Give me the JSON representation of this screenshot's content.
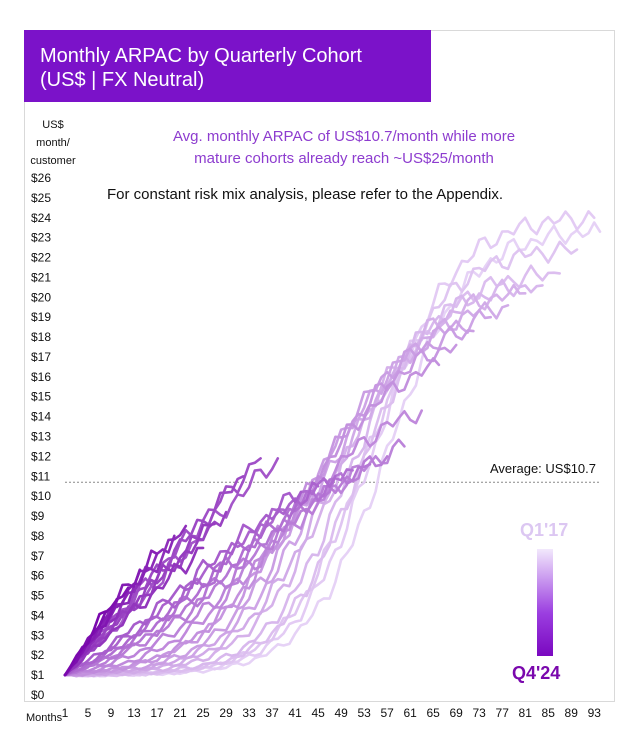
{
  "title": {
    "line1": "Monthly ARPAC by Quarterly Cohort",
    "line2": "(US$ | FX Neutral)"
  },
  "y_unit_label": [
    "US$",
    "month/",
    "customer"
  ],
  "subtitle": {
    "line1": "Avg. monthly ARPAC of US$10.7/month while more",
    "line2": "mature cohorts already reach ~US$25/month"
  },
  "note": "For constant risk mix analysis, please refer to the Appendix.",
  "legend": {
    "newest": "Q4'24",
    "oldest": "Q1'17"
  },
  "colors": {
    "title_bg": "#7b12c9",
    "subtitle": "#8d3ccf",
    "oldest": "#e6d2f6",
    "newest": "#7a08ad"
  },
  "chart_data": {
    "type": "line",
    "title": "Monthly ARPAC by Quarterly Cohort (US$ | FX Neutral)",
    "xlabel": "Months",
    "ylabel": "US$ month/ customer",
    "xlim": [
      1,
      94
    ],
    "ylim": [
      0,
      26
    ],
    "x_ticks": [
      "1",
      "5",
      "9",
      "13",
      "17",
      "21",
      "25",
      "29",
      "33",
      "37",
      "41",
      "45",
      "49",
      "53",
      "57",
      "61",
      "65",
      "69",
      "73",
      "77",
      "81",
      "85",
      "89",
      "93"
    ],
    "y_ticks": [
      "$0",
      "$1",
      "$2",
      "$3",
      "$4",
      "$5",
      "$6",
      "$7",
      "$8",
      "$9",
      "$10",
      "$11",
      "$12",
      "$13",
      "$14",
      "$15",
      "$16",
      "$17",
      "$18",
      "$19",
      "$20",
      "$21",
      "$22",
      "$23",
      "$24",
      "$25",
      "$26"
    ],
    "reference_line": {
      "label": "Average: US$10.7",
      "value": 10.7
    },
    "series_profiles": [
      {
        "end_month": 94,
        "end_value": 23.3,
        "midpoint": 57,
        "steepness": 7,
        "initial": 1.0
      },
      {
        "end_month": 93,
        "end_value": 24.0,
        "midpoint": 55,
        "steepness": 7,
        "initial": 1.0
      },
      {
        "end_month": 90,
        "end_value": 22.4,
        "midpoint": 53,
        "steepness": 7,
        "initial": 1.0
      },
      {
        "end_month": 87,
        "end_value": 21.2,
        "midpoint": 52,
        "steepness": 7,
        "initial": 1.0
      },
      {
        "end_month": 84,
        "end_value": 20.6,
        "midpoint": 50,
        "steepness": 7,
        "initial": 1.0
      },
      {
        "end_month": 81,
        "end_value": 20.2,
        "midpoint": 48,
        "steepness": 7.5,
        "initial": 1.0
      },
      {
        "end_month": 78,
        "end_value": 19.6,
        "midpoint": 47,
        "steepness": 8,
        "initial": 1.0
      },
      {
        "end_month": 75,
        "end_value": 19.0,
        "midpoint": 45,
        "steepness": 8,
        "initial": 1.0
      },
      {
        "end_month": 72,
        "end_value": 18.3,
        "midpoint": 43,
        "steepness": 8,
        "initial": 1.0
      },
      {
        "end_month": 69,
        "end_value": 17.6,
        "midpoint": 42,
        "steepness": 9,
        "initial": 1.0
      },
      {
        "end_month": 66,
        "end_value": 16.6,
        "midpoint": 41,
        "steepness": 9,
        "initial": 1.0
      },
      {
        "end_month": 63,
        "end_value": 14.3,
        "midpoint": 38,
        "steepness": 10,
        "initial": 1.0
      },
      {
        "end_month": 60,
        "end_value": 12.5,
        "midpoint": 36,
        "steepness": 12,
        "initial": 1.0
      },
      {
        "end_month": 57,
        "end_value": 12.0,
        "midpoint": 34,
        "steepness": 14,
        "initial": 1.0
      },
      {
        "end_month": 54,
        "end_value": 11.6,
        "midpoint": 32,
        "steepness": 14,
        "initial": 1.0
      },
      {
        "end_month": 51,
        "end_value": 11.3,
        "midpoint": 30,
        "steepness": 15,
        "initial": 1.0
      },
      {
        "end_month": 48,
        "end_value": 11.0,
        "midpoint": 28,
        "steepness": 15,
        "initial": 1.0
      },
      {
        "end_month": 45,
        "end_value": 10.5,
        "midpoint": 26,
        "steepness": 16,
        "initial": 1.0
      },
      {
        "end_month": 42,
        "end_value": 10.2,
        "midpoint": 24,
        "steepness": 18,
        "initial": 1.0
      },
      {
        "end_month": 38,
        "end_value": 11.9,
        "midpoint": 20,
        "steepness": 22,
        "initial": 1.0
      },
      {
        "end_month": 35,
        "end_value": 11.9,
        "midpoint": 16,
        "steepness": 30,
        "initial": 1.0
      },
      {
        "end_month": 32,
        "end_value": 11.0,
        "midpoint": 14,
        "steepness": 40,
        "initial": 1.0
      },
      {
        "end_month": 29,
        "end_value": 9.2,
        "midpoint": 12,
        "steepness": 40,
        "initial": 1.0
      },
      {
        "end_month": 27,
        "end_value": 8.6,
        "midpoint": 10,
        "steepness": 40,
        "initial": 1.0
      },
      {
        "end_month": 25,
        "end_value": 7.4,
        "midpoint": 9,
        "steepness": 40,
        "initial": 1.0
      },
      {
        "end_month": 22,
        "end_value": 8.5,
        "midpoint": 8,
        "steepness": 40,
        "initial": 1.0
      },
      {
        "end_month": 20,
        "end_value": 8.0,
        "midpoint": 7,
        "steepness": 40,
        "initial": 1.0
      },
      {
        "end_month": 17,
        "end_value": 7.1,
        "midpoint": 6,
        "steepness": 40,
        "initial": 1.0
      },
      {
        "end_month": 14,
        "end_value": 6.3,
        "midpoint": 5,
        "steepness": 40,
        "initial": 1.0
      },
      {
        "end_month": 12,
        "end_value": 5.4,
        "midpoint": 4,
        "steepness": 40,
        "initial": 1.0
      },
      {
        "end_month": 10,
        "end_value": 4.8,
        "midpoint": 3,
        "steepness": 40,
        "initial": 1.0
      },
      {
        "end_month": 8,
        "end_value": 4.2,
        "midpoint": 2,
        "steepness": 40,
        "initial": 1.0
      }
    ]
  }
}
